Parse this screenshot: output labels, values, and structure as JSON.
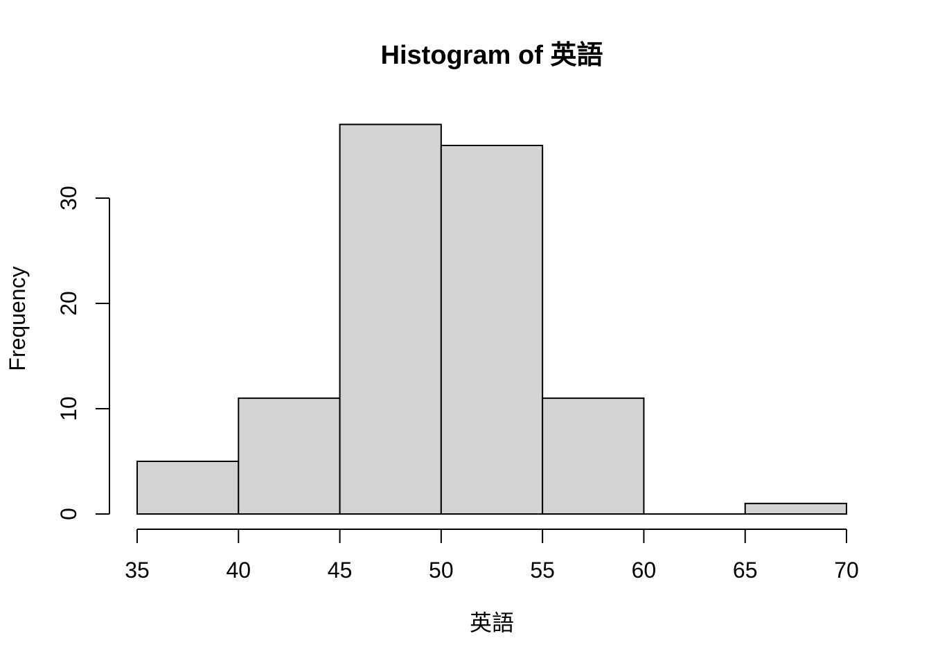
{
  "chart_data": {
    "type": "bar",
    "title": "Histogram of 英語",
    "xlabel": "英語",
    "ylabel": "Frequency",
    "bins": [
      {
        "from": 35,
        "to": 40,
        "count": 5
      },
      {
        "from": 40,
        "to": 45,
        "count": 11
      },
      {
        "from": 45,
        "to": 50,
        "count": 37
      },
      {
        "from": 50,
        "to": 55,
        "count": 35
      },
      {
        "from": 55,
        "to": 60,
        "count": 11
      },
      {
        "from": 60,
        "to": 65,
        "count": 0
      },
      {
        "from": 65,
        "to": 70,
        "count": 1
      }
    ],
    "xlim": [
      35,
      70
    ],
    "ylim": [
      0,
      37
    ],
    "x_ticks": [
      35,
      40,
      45,
      50,
      55,
      60,
      65,
      70
    ],
    "y_ticks": [
      0,
      10,
      20,
      30
    ],
    "grid": false,
    "bar_color": "#d3d3d3",
    "edge_color": "#000000"
  }
}
